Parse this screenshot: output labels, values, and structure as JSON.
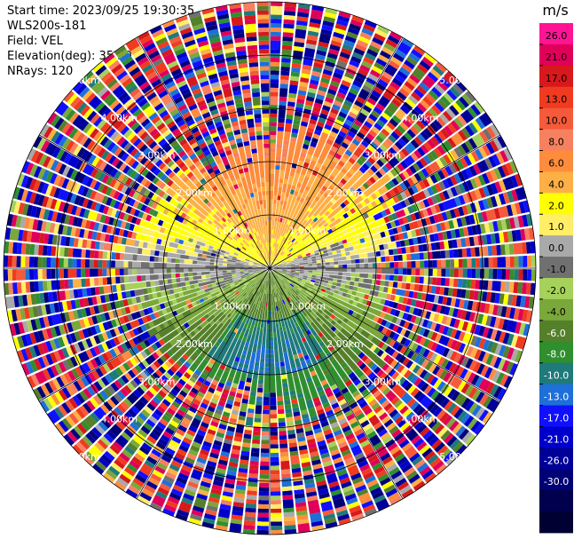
{
  "header": {
    "start_time": "Start time: 2023/09/25 19:30:35",
    "instrument": "WLS200s-181",
    "field": "Field: VEL",
    "elevation": "Elevation(deg): 35.30",
    "nrays": "NRays: 120"
  },
  "chart_data": {
    "type": "heatmap",
    "projection": "polar-ppi",
    "units": "m/s",
    "n_rays": 120,
    "range_rings_km": [
      1.0,
      2.0,
      3.0,
      4.0,
      5.0
    ],
    "range_ring_labels": [
      "1.00km",
      "2.00km",
      "3.00km",
      "4.00km",
      "5.00km"
    ],
    "radial_lines_deg": [
      0,
      30,
      60,
      90,
      120,
      150
    ],
    "max_range_km": 5.0,
    "velocity_field_summary": [
      {
        "sector": "north (top)",
        "range_km": [
          0,
          2.5
        ],
        "velocity_ms": [
          2,
          8
        ]
      },
      {
        "sector": "east/west (sides)",
        "range_km": [
          0,
          2.5
        ],
        "velocity_ms": [
          -1,
          2
        ]
      },
      {
        "sector": "south (bottom)",
        "range_km": [
          0,
          2.5
        ],
        "velocity_ms": [
          -8,
          -2
        ]
      },
      {
        "sector": "all",
        "range_km": [
          2.5,
          5.0
        ],
        "velocity_ms": "noise"
      }
    ],
    "colorbar": {
      "title": "m/s",
      "colors": [
        "#ff1493",
        "#e0005a",
        "#d7191c",
        "#f03b20",
        "#f55a3a",
        "#f78060",
        "#fd8d3c",
        "#fdb045",
        "#ffff00",
        "#ffee66",
        "#a9a9a9",
        "#707070",
        "#a6d15a",
        "#7aa83a",
        "#55802a",
        "#2f8f2f",
        "#1f7a7a",
        "#1e6fd9",
        "#1010ff",
        "#0000cc",
        "#000099",
        "#000077",
        "#00004d",
        "#000033"
      ],
      "tick_labels": [
        "26.0",
        "21.0",
        "17.0",
        "13.0",
        "10.0",
        "8.0",
        "6.0",
        "4.0",
        "2.0",
        "1.0",
        "0.0",
        "-1.0",
        "-2.0",
        "-4.0",
        "-6.0",
        "-8.0",
        "-10.0",
        "-13.0",
        "-17.0",
        "-21.0",
        "-26.0",
        "-30.0"
      ]
    }
  }
}
